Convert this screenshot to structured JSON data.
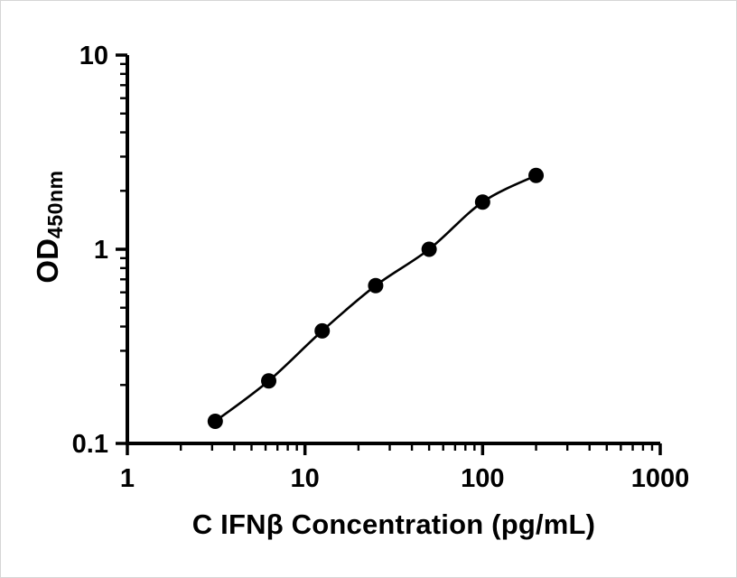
{
  "figure": {
    "y_axis_title_main": "OD",
    "y_axis_title_subscript": "450nm"
  },
  "chart_data": {
    "type": "scatter",
    "title": "",
    "xlabel": "C IFNβ Concentration (pg/mL)",
    "ylabel": "OD450nm",
    "xscale": "log",
    "yscale": "log",
    "xlim": [
      1,
      1000
    ],
    "ylim": [
      0.1,
      10
    ],
    "x_ticks": [
      1,
      10,
      100,
      1000
    ],
    "x_tick_labels": [
      "1",
      "10",
      "100",
      "1000"
    ],
    "y_ticks": [
      0.1,
      1,
      10
    ],
    "y_tick_labels": [
      "0.1",
      "1",
      "10"
    ],
    "grid": false,
    "legend": "none",
    "series": [
      {
        "x": [
          3.125,
          6.25,
          12.5,
          25,
          50,
          100,
          200
        ],
        "y": [
          0.13,
          0.21,
          0.38,
          0.65,
          1.0,
          1.75,
          2.4
        ],
        "marker": "circle",
        "marker_color": "#000000",
        "line_color": "#000000",
        "fit": "smooth"
      }
    ]
  }
}
